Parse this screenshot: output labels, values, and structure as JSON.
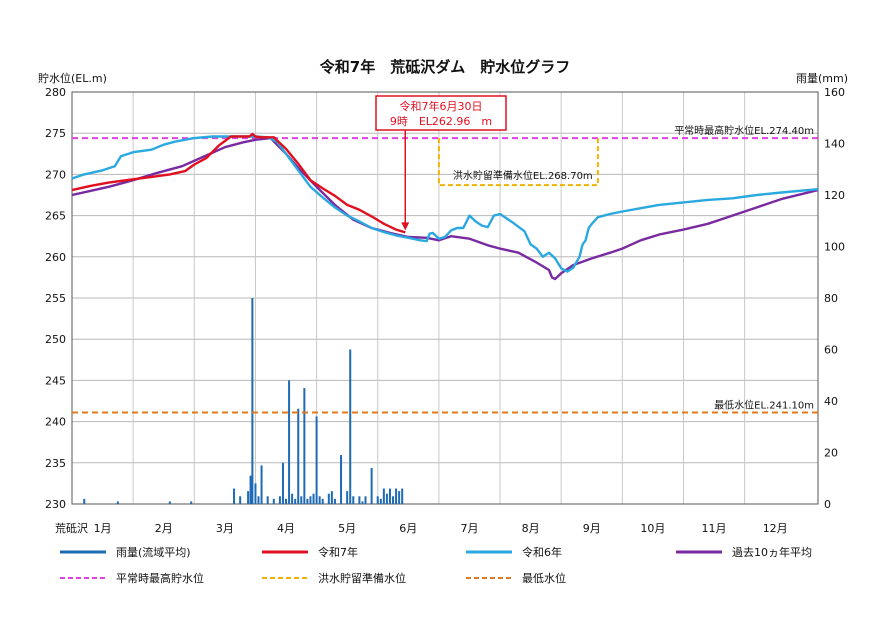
{
  "chart_data": {
    "type": "line",
    "title": "令和7年　荒砥沢ダム　貯水位グラフ",
    "ylabel_left": "貯水位(EL.m)",
    "ylabel_right": "雨量(mm)",
    "xlabel": "荒砥沢",
    "months": [
      "1月",
      "2月",
      "3月",
      "4月",
      "5月",
      "6月",
      "7月",
      "8月",
      "9月",
      "10月",
      "11月",
      "12月"
    ],
    "ylim_left": [
      230,
      280
    ],
    "ylim_right": [
      0,
      160
    ],
    "xlim": [
      1,
      13.2
    ],
    "yticks_left": [
      230,
      235,
      240,
      245,
      250,
      255,
      260,
      265,
      270,
      275,
      280
    ],
    "yticks_right": [
      0,
      20,
      40,
      60,
      80,
      100,
      120,
      140,
      160
    ],
    "grid": true,
    "legend_position": "bottom",
    "reference_lines": [
      {
        "name": "平常時最高貯水位",
        "label": "平常時最高貯水位EL.274.40m",
        "value": 274.4,
        "color": "#e040e0"
      },
      {
        "name": "最低水位",
        "label": "最低水位EL.241.10m",
        "value": 241.1,
        "color": "#e07820"
      }
    ],
    "flood_level": {
      "name": "洪水貯留準備水位",
      "label": "洪水貯留準備水位EL.268.70m",
      "value": 268.7,
      "full_value": 274.4,
      "start_x": 7.0,
      "end_x": 9.6,
      "color": "#f0b400"
    },
    "annotation": {
      "line1": "令和7年6月30日",
      "line2": "9時　EL262.96　m",
      "x": 6.45,
      "y": 262.96
    },
    "series": [
      {
        "name": "令和7年",
        "color": "#e01020",
        "x": [
          1.0,
          1.3,
          1.6,
          2.0,
          2.3,
          2.6,
          2.85,
          3.0,
          3.2,
          3.4,
          3.6,
          3.8,
          3.9,
          3.95,
          4.0,
          4.1,
          4.3,
          4.5,
          4.7,
          4.9,
          5.1,
          5.3,
          5.5,
          5.7,
          5.9,
          6.1,
          6.3,
          6.45
        ],
        "y": [
          268.1,
          268.6,
          269.0,
          269.4,
          269.7,
          270.0,
          270.4,
          271.2,
          272.0,
          273.5,
          274.6,
          274.6,
          274.6,
          274.9,
          274.6,
          274.5,
          274.5,
          273.1,
          271.3,
          269.3,
          268.3,
          267.4,
          266.3,
          265.7,
          264.9,
          264.0,
          263.3,
          262.96
        ]
      },
      {
        "name": "令和6年",
        "color": "#2aa8e0",
        "x": [
          1.0,
          1.2,
          1.5,
          1.7,
          1.8,
          2.0,
          2.3,
          2.5,
          2.7,
          3.0,
          3.3,
          3.6,
          4.0,
          4.2,
          4.35,
          4.5,
          4.7,
          4.9,
          5.1,
          5.3,
          5.5,
          5.7,
          5.9,
          6.1,
          6.3,
          6.5,
          6.7,
          6.8,
          6.85,
          6.9,
          7.0,
          7.1,
          7.2,
          7.3,
          7.4,
          7.5,
          7.6,
          7.7,
          7.8,
          7.9,
          8.0,
          8.2,
          8.4,
          8.5,
          8.6,
          8.7,
          8.8,
          8.9,
          9.0,
          9.1,
          9.2,
          9.3,
          9.35,
          9.4,
          9.45,
          9.5,
          9.6,
          9.8,
          10.0,
          10.3,
          10.6,
          11.0,
          11.4,
          11.8,
          12.2,
          12.6,
          13.2
        ],
        "y": [
          269.5,
          270.0,
          270.5,
          271.0,
          272.2,
          272.7,
          273.0,
          273.6,
          274.0,
          274.4,
          274.6,
          274.6,
          274.6,
          274.5,
          274.0,
          272.5,
          270.5,
          268.5,
          267.2,
          266.0,
          265.0,
          264.3,
          263.5,
          263.0,
          262.6,
          262.3,
          262.0,
          261.9,
          262.8,
          262.9,
          262.2,
          262.4,
          263.2,
          263.5,
          263.5,
          265.0,
          264.3,
          263.8,
          263.6,
          265.0,
          265.2,
          264.2,
          263.1,
          261.5,
          261.0,
          260.0,
          260.5,
          259.8,
          258.6,
          258.2,
          258.7,
          260.0,
          261.5,
          262.0,
          263.5,
          264.0,
          264.8,
          265.2,
          265.5,
          265.9,
          266.3,
          266.6,
          266.9,
          267.1,
          267.5,
          267.8,
          268.2
        ]
      },
      {
        "name": "過去10ヵ年平均",
        "color": "#7a2aa0",
        "x": [
          1.0,
          1.3,
          1.6,
          2.0,
          2.4,
          2.8,
          3.2,
          3.5,
          3.8,
          4.0,
          4.25,
          4.5,
          4.7,
          5.0,
          5.3,
          5.6,
          5.9,
          6.2,
          6.5,
          6.8,
          7.0,
          7.2,
          7.5,
          7.8,
          8.0,
          8.3,
          8.6,
          8.8,
          8.85,
          8.9,
          9.0,
          9.2,
          9.5,
          9.8,
          10.0,
          10.3,
          10.6,
          11.0,
          11.4,
          11.8,
          12.2,
          12.6,
          13.2
        ],
        "y": [
          267.5,
          268.0,
          268.5,
          269.3,
          270.2,
          271.0,
          272.3,
          273.3,
          273.9,
          274.2,
          274.4,
          272.5,
          270.8,
          268.5,
          266.3,
          264.5,
          263.5,
          262.9,
          262.4,
          262.3,
          262.0,
          262.5,
          262.2,
          261.4,
          261.0,
          260.5,
          259.3,
          258.4,
          257.5,
          257.3,
          258.0,
          259.0,
          259.8,
          260.5,
          261.0,
          262.0,
          262.7,
          263.3,
          264.0,
          265.0,
          266.0,
          267.0,
          268.1
        ]
      }
    ],
    "rainfall": {
      "name": "雨量(流域平均)",
      "color": "#1e6ab4",
      "x": [
        1.2,
        1.75,
        2.6,
        2.95,
        3.65,
        3.75,
        3.88,
        3.92,
        3.95,
        4.0,
        4.05,
        4.1,
        4.2,
        4.3,
        4.4,
        4.45,
        4.5,
        4.55,
        4.6,
        4.65,
        4.7,
        4.75,
        4.8,
        4.85,
        4.9,
        4.95,
        5.0,
        5.05,
        5.1,
        5.2,
        5.25,
        5.3,
        5.4,
        5.5,
        5.55,
        5.6,
        5.7,
        5.75,
        5.8,
        5.9,
        6.0,
        6.05,
        6.1,
        6.15,
        6.2,
        6.25,
        6.3,
        6.35,
        6.4
      ],
      "values": [
        2,
        1,
        1,
        1,
        6,
        3,
        5,
        11,
        80,
        8,
        3,
        15,
        3,
        2,
        3,
        16,
        2,
        48,
        4,
        2,
        37,
        3,
        45,
        2,
        3,
        4,
        34,
        3,
        2,
        4,
        5,
        2,
        19,
        5,
        60,
        3,
        3,
        1,
        3,
        14,
        3,
        2,
        6,
        4,
        6,
        3,
        6,
        5,
        6
      ]
    },
    "legend": [
      {
        "name": "雨量(流域平均)",
        "color": "#1e6ab4",
        "dash": false
      },
      {
        "name": "令和7年",
        "color": "#e01020",
        "dash": false
      },
      {
        "name": "令和6年",
        "color": "#2aa8e0",
        "dash": false
      },
      {
        "name": "過去10ヵ年平均",
        "color": "#7a2aa0",
        "dash": false
      },
      {
        "name": "平常時最高貯水位",
        "color": "#e040e0",
        "dash": true
      },
      {
        "name": "洪水貯留準備水位",
        "color": "#f0b400",
        "dash": true
      },
      {
        "name": "最低水位",
        "color": "#e07820",
        "dash": true
      }
    ]
  }
}
